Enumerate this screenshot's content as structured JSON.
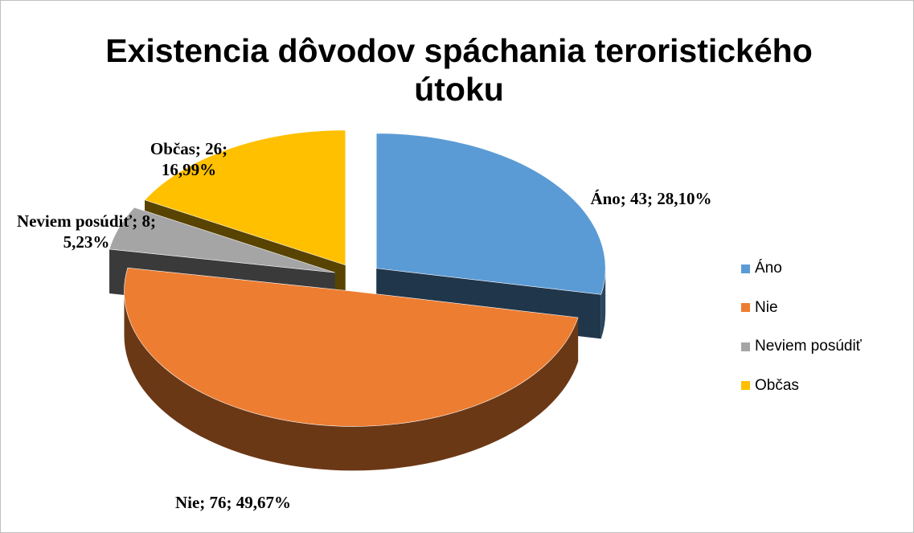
{
  "chart_data": {
    "type": "pie3d",
    "title": "Existencia dôvodov spáchania teroristického útoku",
    "categories": [
      "Áno",
      "Nie",
      "Neviem posúdiť",
      "Občas"
    ],
    "values": [
      43,
      76,
      8,
      26
    ],
    "value_labels": [
      "Áno; 43; 28,10%",
      "Nie; 76; 49,67%",
      "Neviem posúdiť; 8; 5,23%",
      "Občas; 26; 16,99%"
    ],
    "colors": [
      "#5b9bd5",
      "#ed7d31",
      "#a5a5a5",
      "#ffc000"
    ],
    "legend": "right"
  }
}
